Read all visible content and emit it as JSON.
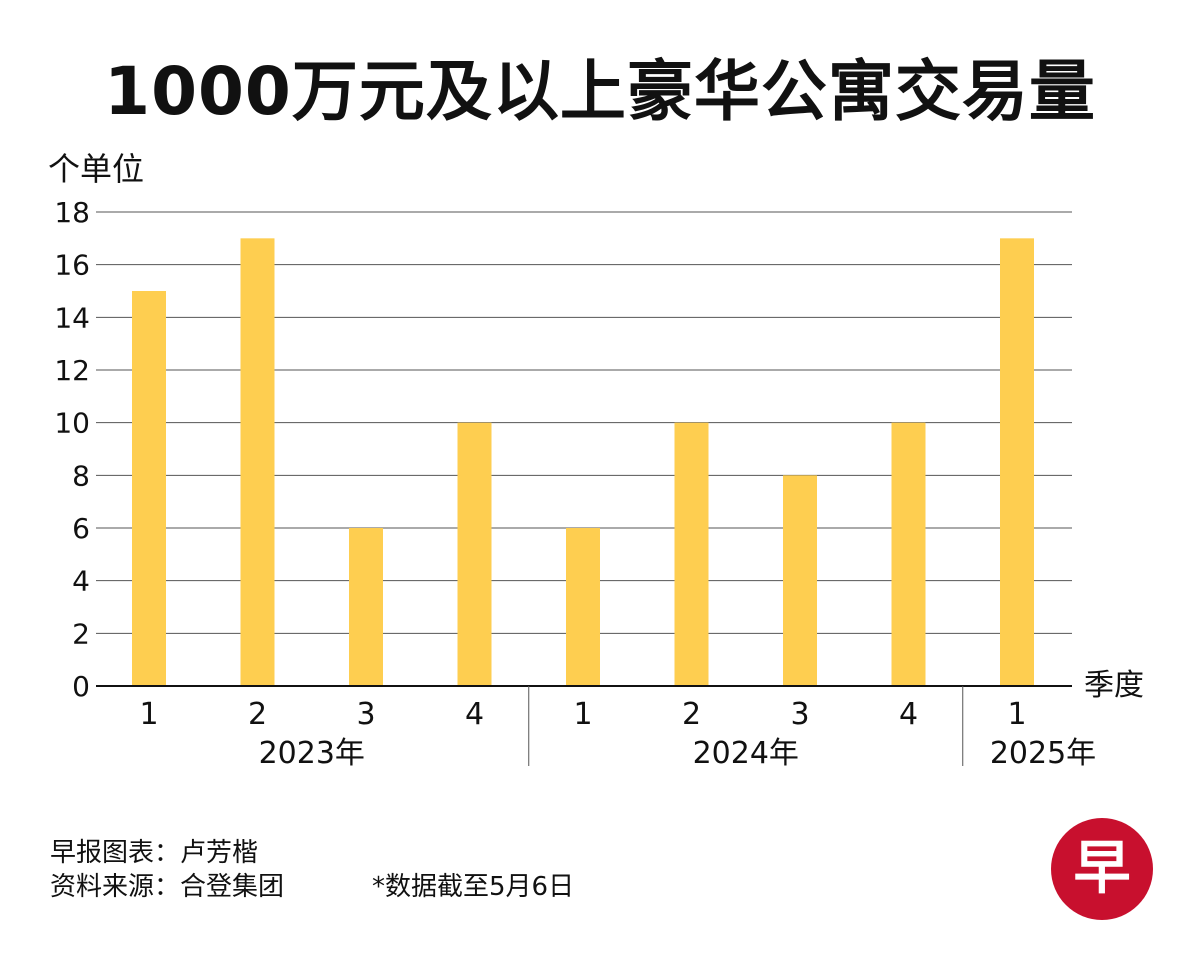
{
  "title": "1000万元及以上豪华公寓交易量",
  "chart_data": {
    "type": "bar",
    "title": "1000万元及以上豪华公寓交易量",
    "ylabel": "个单位",
    "xlabel": "季度",
    "ylim": [
      0,
      18
    ],
    "yticks": [
      0,
      2,
      4,
      6,
      8,
      10,
      12,
      14,
      16,
      18
    ],
    "categories": [
      "1",
      "2",
      "3",
      "4",
      "1",
      "2",
      "3",
      "4",
      "1"
    ],
    "groups": [
      {
        "label": "2023年",
        "start": 0,
        "count": 4
      },
      {
        "label": "2024年",
        "start": 4,
        "count": 4
      },
      {
        "label": "2025年",
        "start": 8,
        "count": 1
      }
    ],
    "values": [
      15,
      17,
      6,
      10,
      6,
      10,
      8,
      10,
      17
    ],
    "bar_color": "#FECE50",
    "grid": true
  },
  "footer": {
    "chart_by": "早报图表：卢芳楷",
    "source": "资料来源：合登集团",
    "note": "*数据截至5月6日"
  },
  "logo": {
    "text": "早",
    "color": "#C8102E"
  }
}
